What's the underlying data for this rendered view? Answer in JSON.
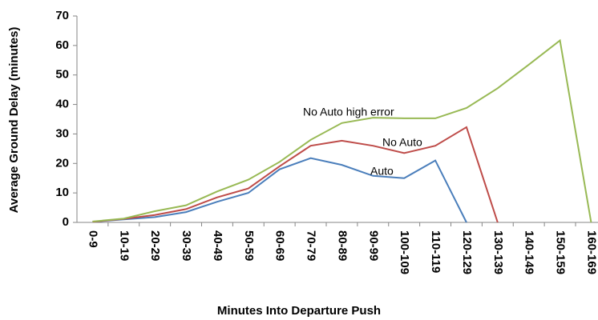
{
  "chart_data": {
    "type": "line",
    "x_label": "Minutes Into Departure Push",
    "y_label": "Average Ground Delay (minutes)",
    "categories": [
      "0-9",
      "10-19",
      "20-29",
      "30-39",
      "40-49",
      "50-59",
      "60-69",
      "70-79",
      "80-89",
      "90-99",
      "100-109",
      "110-119",
      "120-129",
      "130-139",
      "140-149",
      "150-159",
      "160-169"
    ],
    "series": [
      {
        "name": "Auto",
        "color": "#4a7ebb",
        "values": [
          0.2,
          1,
          1.8,
          3.5,
          7,
          10,
          18,
          21.8,
          19.5,
          15.8,
          15,
          21,
          0,
          null,
          null,
          null,
          null
        ]
      },
      {
        "name": "No Auto",
        "color": "#be4b48",
        "values": [
          0.2,
          1.2,
          2.5,
          4.5,
          8.5,
          11.5,
          19,
          26,
          27.7,
          26,
          23.5,
          26,
          32.3,
          0,
          null,
          null,
          null
        ]
      },
      {
        "name": "No Auto high error",
        "color": "#98b954",
        "values": [
          0.3,
          1.3,
          3.8,
          5.8,
          10.5,
          14.5,
          20.5,
          28,
          33.7,
          35.5,
          35.3,
          35.3,
          38.8,
          45.5,
          53.5,
          61.7,
          0
        ]
      }
    ],
    "ylim": [
      0,
      70
    ],
    "yticks": [
      0,
      10,
      20,
      30,
      40,
      50,
      60,
      70
    ],
    "grid": false
  }
}
